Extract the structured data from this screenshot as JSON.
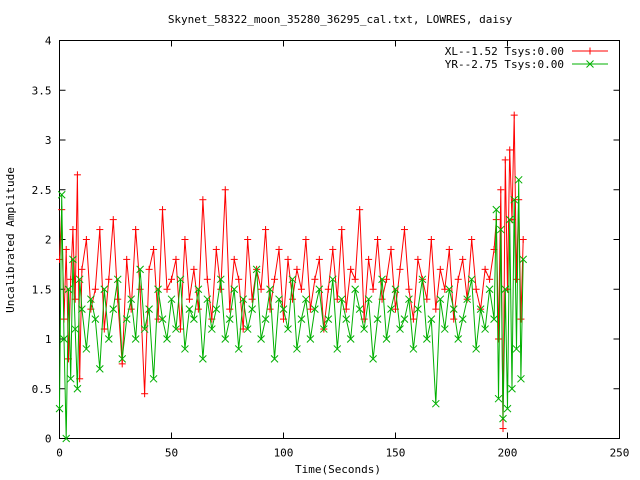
{
  "chart_data": {
    "type": "line",
    "title": "Skynet_58322_moon_35280_36295_cal.txt, LOWRES, daisy",
    "xlabel": "Time(Seconds)",
    "ylabel": "Uncalibrated Amplitude",
    "xlim": [
      0,
      250
    ],
    "ylim": [
      0,
      4
    ],
    "xticks": [
      "0",
      "50",
      "100",
      "150",
      "200",
      "250"
    ],
    "yticks": [
      "0",
      "0.5",
      "1",
      "1.5",
      "2",
      "2.5",
      "3",
      "3.5",
      "4"
    ],
    "legend_position": "top-right",
    "series": [
      {
        "name": "XL--1.52 Tsys:0.00",
        "color": "#ff0000",
        "marker": "plus",
        "x": [
          0,
          1,
          2,
          3,
          4,
          5,
          6,
          7,
          8,
          9,
          10,
          12,
          14,
          16,
          18,
          20,
          22,
          24,
          26,
          28,
          30,
          32,
          34,
          36,
          38,
          40,
          42,
          44,
          46,
          48,
          50,
          52,
          54,
          56,
          58,
          60,
          62,
          64,
          66,
          68,
          70,
          72,
          74,
          76,
          78,
          80,
          82,
          84,
          86,
          88,
          90,
          92,
          94,
          96,
          98,
          100,
          102,
          104,
          106,
          108,
          110,
          112,
          114,
          116,
          118,
          120,
          122,
          124,
          126,
          128,
          130,
          132,
          134,
          136,
          138,
          140,
          142,
          144,
          146,
          148,
          150,
          152,
          154,
          156,
          158,
          160,
          162,
          164,
          166,
          168,
          170,
          172,
          174,
          176,
          178,
          180,
          182,
          184,
          186,
          188,
          190,
          192,
          194,
          195,
          196,
          197,
          198,
          199,
          200,
          201,
          202,
          203,
          204,
          205,
          206,
          207
        ],
        "y": [
          1.8,
          2.3,
          1.2,
          1.9,
          0.8,
          1.6,
          2.1,
          1.4,
          2.65,
          0.6,
          1.7,
          2.0,
          1.3,
          1.5,
          2.1,
          1.1,
          1.6,
          2.2,
          1.4,
          0.75,
          1.8,
          1.3,
          2.1,
          1.5,
          0.45,
          1.7,
          1.9,
          1.2,
          2.3,
          1.5,
          1.6,
          1.8,
          1.1,
          2.0,
          1.4,
          1.7,
          1.3,
          2.4,
          1.6,
          1.2,
          1.9,
          1.5,
          2.5,
          1.3,
          1.8,
          1.6,
          1.1,
          2.0,
          1.4,
          1.7,
          1.5,
          2.1,
          1.3,
          1.6,
          1.9,
          1.2,
          1.8,
          1.4,
          1.7,
          1.5,
          2.0,
          1.3,
          1.6,
          1.8,
          1.1,
          1.5,
          1.9,
          1.4,
          2.1,
          1.3,
          1.7,
          1.6,
          2.3,
          1.2,
          1.8,
          1.5,
          2.0,
          1.4,
          1.6,
          1.9,
          1.3,
          1.7,
          2.1,
          1.5,
          1.2,
          1.8,
          1.6,
          1.4,
          2.0,
          1.3,
          1.7,
          1.5,
          1.9,
          1.2,
          1.6,
          1.8,
          1.4,
          2.0,
          1.5,
          1.3,
          1.7,
          1.6,
          1.9,
          2.2,
          1.0,
          2.5,
          0.1,
          2.8,
          1.5,
          2.9,
          2.2,
          3.25,
          1.6,
          2.4,
          1.2,
          2.0
        ]
      },
      {
        "name": "YR--2.75 Tsys:0.00",
        "color": "#00b000",
        "marker": "cross",
        "x": [
          0,
          1,
          2,
          3,
          4,
          5,
          6,
          7,
          8,
          9,
          10,
          12,
          14,
          16,
          18,
          20,
          22,
          24,
          26,
          28,
          30,
          32,
          34,
          36,
          38,
          40,
          42,
          44,
          46,
          48,
          50,
          52,
          54,
          56,
          58,
          60,
          62,
          64,
          66,
          68,
          70,
          72,
          74,
          76,
          78,
          80,
          82,
          84,
          86,
          88,
          90,
          92,
          94,
          96,
          98,
          100,
          102,
          104,
          106,
          108,
          110,
          112,
          114,
          116,
          118,
          120,
          122,
          124,
          126,
          128,
          130,
          132,
          134,
          136,
          138,
          140,
          142,
          144,
          146,
          148,
          150,
          152,
          154,
          156,
          158,
          160,
          162,
          164,
          166,
          168,
          170,
          172,
          174,
          176,
          178,
          180,
          182,
          184,
          186,
          188,
          190,
          192,
          194,
          195,
          196,
          197,
          198,
          199,
          200,
          201,
          202,
          203,
          204,
          205,
          206,
          207
        ],
        "y": [
          0.3,
          2.45,
          1.0,
          0.0,
          1.5,
          0.6,
          1.8,
          1.1,
          0.5,
          1.6,
          1.3,
          0.9,
          1.4,
          1.2,
          0.7,
          1.5,
          1.0,
          1.3,
          1.6,
          0.8,
          1.2,
          1.4,
          1.0,
          1.7,
          1.1,
          1.3,
          0.6,
          1.5,
          1.2,
          1.0,
          1.4,
          1.1,
          1.6,
          0.9,
          1.3,
          1.2,
          1.5,
          0.8,
          1.4,
          1.1,
          1.3,
          1.6,
          1.0,
          1.2,
          1.5,
          0.9,
          1.4,
          1.1,
          1.3,
          1.7,
          1.0,
          1.2,
          1.5,
          0.8,
          1.4,
          1.3,
          1.1,
          1.6,
          0.9,
          1.2,
          1.4,
          1.0,
          1.3,
          1.5,
          1.1,
          1.2,
          1.6,
          0.9,
          1.4,
          1.2,
          1.0,
          1.5,
          1.3,
          1.1,
          1.4,
          0.8,
          1.2,
          1.6,
          1.0,
          1.3,
          1.5,
          1.1,
          1.2,
          1.4,
          0.9,
          1.3,
          1.6,
          1.0,
          1.2,
          0.35,
          1.4,
          1.1,
          1.5,
          1.3,
          1.0,
          1.2,
          1.4,
          1.6,
          0.9,
          1.3,
          1.1,
          1.5,
          1.2,
          2.3,
          0.4,
          2.1,
          0.2,
          1.5,
          0.3,
          2.2,
          0.5,
          2.4,
          0.9,
          2.6,
          0.6,
          1.8
        ]
      }
    ]
  }
}
